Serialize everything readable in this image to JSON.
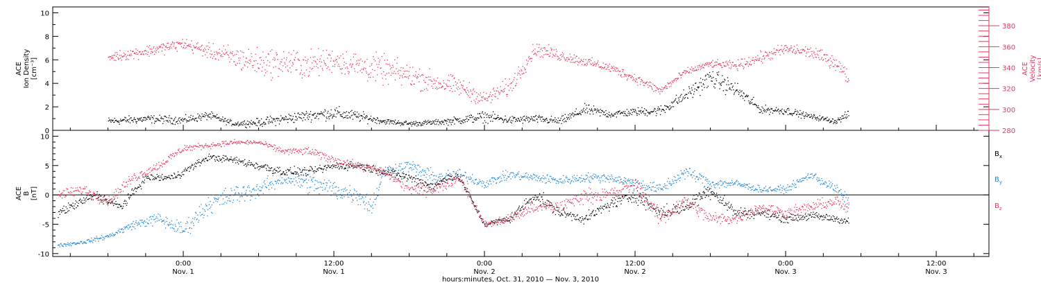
{
  "chart_data": [
    {
      "type": "scatter",
      "panel": "top",
      "ylabel_lines": [
        "ACE",
        "Ion Density",
        "[cm⁻³]"
      ],
      "ylim": [
        0,
        10.5
      ],
      "yticks": [
        0,
        2,
        4,
        6,
        8,
        10
      ],
      "y2label_lines": [
        "ACE",
        "Velocity",
        "[km/s]"
      ],
      "y2lim": [
        280,
        398
      ],
      "y2ticks": [
        280,
        300,
        320,
        340,
        360,
        380
      ],
      "series": [
        {
          "color": "#000000",
          "axis": "left",
          "x": [
            -6,
            -3,
            0,
            2,
            4,
            6,
            8,
            10,
            12,
            14,
            16,
            18,
            20,
            22,
            24,
            26,
            28,
            30,
            32,
            34,
            36,
            38,
            40,
            42,
            44,
            46,
            48,
            50,
            52,
            53
          ],
          "y": [
            0.8,
            1.0,
            0.9,
            1.3,
            0.6,
            0.7,
            1.0,
            1.3,
            1.5,
            1.2,
            0.8,
            0.6,
            0.7,
            0.9,
            1.2,
            0.9,
            1.0,
            0.8,
            1.8,
            1.4,
            1.6,
            1.7,
            3.0,
            4.5,
            3.5,
            1.8,
            1.7,
            1.2,
            0.8,
            1.4
          ],
          "spread": [
            0.3,
            0.3,
            0.3,
            0.3,
            0.2,
            0.3,
            0.4,
            0.4,
            0.5,
            0.4,
            0.2,
            0.2,
            0.2,
            0.3,
            0.4,
            0.3,
            0.3,
            0.3,
            0.4,
            0.3,
            0.3,
            0.4,
            0.5,
            0.7,
            0.6,
            0.3,
            0.3,
            0.2,
            0.2,
            0.3
          ]
        },
        {
          "color": "#e8365d",
          "axis": "right",
          "x": [
            -6,
            -3,
            0,
            2,
            4,
            6,
            8,
            10,
            12,
            14,
            16,
            18,
            20,
            22,
            24,
            26,
            28,
            30,
            32,
            34,
            36,
            38,
            40,
            42,
            44,
            46,
            48,
            50,
            52,
            53
          ],
          "y": [
            350,
            356,
            363,
            356,
            350,
            345,
            345,
            343,
            348,
            342,
            338,
            333,
            326,
            322,
            310,
            322,
            358,
            352,
            346,
            340,
            330,
            318,
            336,
            344,
            342,
            350,
            358,
            355,
            345,
            330
          ],
          "spread": [
            4,
            5,
            5,
            6,
            10,
            12,
            12,
            12,
            10,
            12,
            12,
            10,
            9,
            8,
            6,
            8,
            6,
            5,
            4,
            4,
            4,
            4,
            3,
            3,
            4,
            5,
            5,
            5,
            6,
            6
          ]
        }
      ]
    },
    {
      "type": "scatter",
      "panel": "bottom",
      "ylabel_lines": [
        "ACE",
        "B",
        "[nT]"
      ],
      "ylim": [
        -10.5,
        11
      ],
      "yticks": [
        -10,
        -5,
        0,
        5,
        10
      ],
      "legend_position": "right",
      "series": [
        {
          "name": "Bx",
          "label_main": "B",
          "label_sub": "x",
          "color": "#000000",
          "x": [
            -10,
            -7,
            -5,
            -3,
            -1,
            0,
            2,
            4,
            6,
            8,
            10,
            12,
            14,
            16,
            18,
            20,
            21,
            22,
            24,
            26,
            28,
            30,
            32,
            34,
            36,
            38,
            40,
            42,
            44,
            46,
            48,
            50,
            52,
            53
          ],
          "y": [
            -3,
            0,
            -2,
            3,
            3,
            4,
            6.5,
            6,
            5,
            4,
            4,
            5,
            5,
            4,
            3,
            1.5,
            3,
            3,
            -5,
            -4,
            0,
            -3,
            -4,
            -1.5,
            0,
            -3,
            -2,
            1,
            -3,
            -3,
            -4,
            -3.5,
            -4,
            -4.5
          ],
          "spread": [
            0.7,
            0.7,
            0.7,
            0.6,
            0.6,
            0.6,
            0.5,
            0.5,
            0.7,
            0.7,
            0.6,
            0.6,
            0.6,
            0.6,
            0.8,
            0.8,
            0.6,
            0.6,
            0.4,
            0.6,
            1.0,
            0.8,
            0.7,
            0.9,
            1.0,
            1.0,
            1.0,
            1.2,
            0.9,
            0.7,
            0.6,
            0.6,
            0.6,
            0.5
          ]
        },
        {
          "name": "By",
          "label_main": "B",
          "label_sub": "y",
          "color": "#1f86d6",
          "x": [
            -10,
            -8,
            -6,
            -4,
            -2,
            0,
            2,
            4,
            6,
            8,
            10,
            12,
            14,
            15,
            16,
            18,
            20,
            22,
            24,
            26,
            28,
            30,
            32,
            34,
            36,
            38,
            40,
            42,
            44,
            46,
            48,
            50,
            52,
            53
          ],
          "y": [
            -8.5,
            -8,
            -7,
            -5,
            -4,
            -6,
            -1.5,
            0,
            1,
            3,
            2,
            1,
            0,
            -2,
            4,
            5,
            3,
            3.5,
            2,
            3.5,
            3,
            2.5,
            3,
            3,
            2,
            1,
            4,
            2,
            2,
            1,
            1,
            3.5,
            1,
            -1
          ],
          "spread": [
            0.3,
            0.3,
            0.4,
            0.6,
            0.9,
            1.2,
            1.5,
            1.5,
            1.2,
            1.2,
            1.5,
            1.5,
            1.5,
            1.5,
            1.2,
            1.0,
            1.0,
            0.9,
            0.7,
            0.7,
            0.7,
            0.7,
            0.7,
            0.7,
            0.8,
            0.9,
            0.9,
            0.9,
            0.6,
            0.5,
            0.5,
            0.6,
            0.8,
            0.8
          ]
        },
        {
          "name": "Bz",
          "label_main": "B",
          "label_sub": "z",
          "color": "#e8365d",
          "x": [
            -10,
            -8,
            -6,
            -4,
            -2,
            0,
            2,
            4,
            6,
            8,
            10,
            12,
            14,
            16,
            18,
            20,
            22,
            24,
            26,
            28,
            30,
            32,
            34,
            36,
            38,
            40,
            42,
            44,
            46,
            48,
            50,
            52,
            53
          ],
          "y": [
            0,
            1,
            -1,
            3,
            5,
            8,
            8.5,
            9,
            9,
            7.5,
            7.5,
            6,
            5,
            4,
            1,
            1,
            3,
            -5,
            -4,
            -2,
            -2,
            0,
            0,
            2,
            -4,
            -1,
            -4,
            -4,
            -2,
            -3,
            -2,
            -1,
            -2.5
          ],
          "spread": [
            0.8,
            0.8,
            0.8,
            0.8,
            0.7,
            0.6,
            0.4,
            0.4,
            0.3,
            0.5,
            0.6,
            0.7,
            0.6,
            0.7,
            0.9,
            0.9,
            0.7,
            0.5,
            0.8,
            1.0,
            1.0,
            1.0,
            1.2,
            1.2,
            1.2,
            1.2,
            1.0,
            0.8,
            0.9,
            0.8,
            0.8,
            0.9,
            0.9
          ]
        }
      ]
    }
  ],
  "x_axis": {
    "range_hours": [
      -10.4,
      64.2
    ],
    "major_ticks": [
      {
        "hour": 0,
        "time": "0:00",
        "date": "Nov. 1"
      },
      {
        "hour": 12,
        "time": "12:00",
        "date": "Nov. 1"
      },
      {
        "hour": 24,
        "time": "0:00",
        "date": "Nov. 2"
      },
      {
        "hour": 36,
        "time": "12:00",
        "date": "Nov. 2"
      },
      {
        "hour": 48,
        "time": "0:00",
        "date": "Nov. 3"
      },
      {
        "hour": 60,
        "time": "12:00",
        "date": "Nov. 3"
      }
    ],
    "xlabel": "hours:minutes, Oct. 31, 2010 — Nov.  3, 2010"
  },
  "colors": {
    "black": "#000000",
    "red": "#e8365d",
    "blue": "#1f86d6"
  }
}
